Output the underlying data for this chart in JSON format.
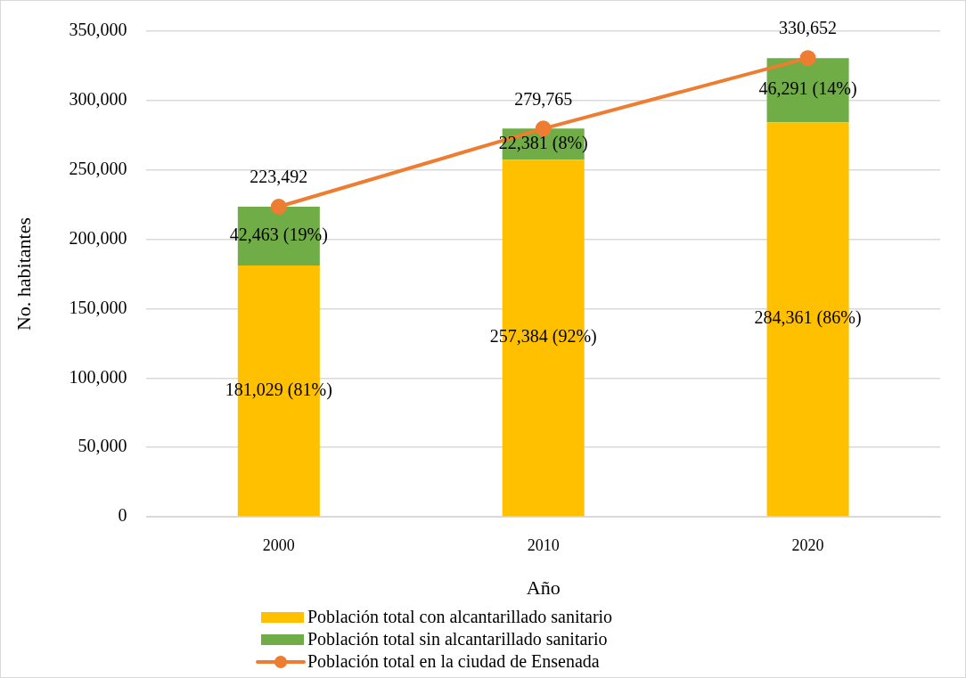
{
  "chart_data": {
    "type": "bar",
    "stacked": true,
    "xlabel": "Año",
    "ylabel": "No. habitantes",
    "categories": [
      "2000",
      "2010",
      "2020"
    ],
    "ylim": [
      0,
      350000
    ],
    "yticks": [
      {
        "value": 0,
        "label": "0"
      },
      {
        "value": 50000,
        "label": "50,000"
      },
      {
        "value": 100000,
        "label": "100,000"
      },
      {
        "value": 150000,
        "label": "150,000"
      },
      {
        "value": 200000,
        "label": "200,000"
      },
      {
        "value": 250000,
        "label": "250,000"
      },
      {
        "value": 300000,
        "label": "300,000"
      },
      {
        "value": 350000,
        "label": "350,000"
      }
    ],
    "grid": "y",
    "legend": "bottom",
    "series": [
      {
        "name": "Población total con alcantarillado sanitario",
        "color": "#ffc000",
        "values": [
          181029,
          257384,
          284361
        ],
        "value_labels": [
          "181,029 (81%)",
          "257,384 (92%)",
          "284,361 (86%)"
        ]
      },
      {
        "name": "Población total sin alcantarillado sanitario",
        "color": "#70ad47",
        "values": [
          42463,
          22381,
          46291
        ],
        "value_labels": [
          "42,463 (19%)",
          "22,381 (8%)",
          "46,291 (14%)"
        ]
      },
      {
        "name": "Población total en la ciudad de Ensenada",
        "type": "line",
        "marker": "circle",
        "color": "#ed7d31",
        "values": [
          223492,
          279765,
          330652
        ],
        "value_labels": [
          "223,492",
          "279,765",
          "330,652"
        ]
      }
    ]
  }
}
